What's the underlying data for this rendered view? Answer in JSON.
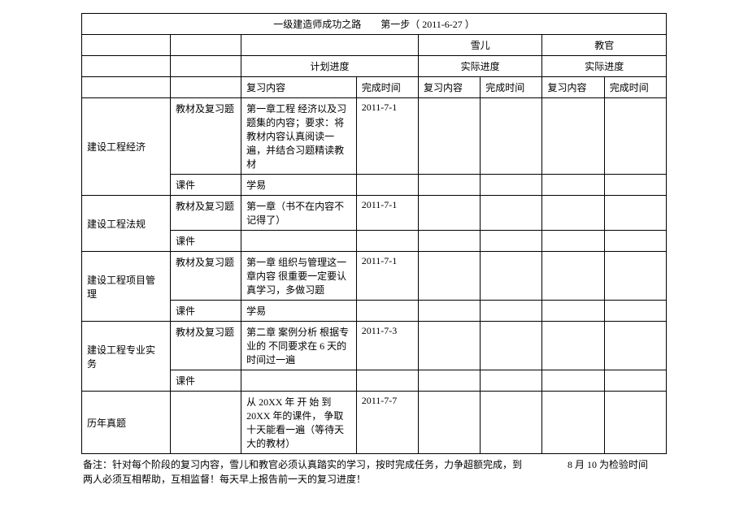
{
  "title": "一级建造师成功之路　　第一步（ 2011-6-27 ）",
  "header": {
    "person1": "雪儿",
    "person2": "教官",
    "plan_progress": "计划进度",
    "actual_progress": "实际进度",
    "review_content": "复习内容",
    "complete_time": "完成时间"
  },
  "sections": [
    {
      "subject": "建设工程经济",
      "items": [
        {
          "type": "教材及复习题",
          "content": "第一章工程 经济以及习题集的内容；要求：将教材内容认真阅读一遍，并结合习题精读教材",
          "time": "2011-7-1"
        },
        {
          "type": "课件",
          "content": "学易",
          "time": ""
        }
      ]
    },
    {
      "subject": "建设工程法规",
      "items": [
        {
          "type": "教材及复习题",
          "content": "第一章（书不在内容不记得了）",
          "time": "2011-7-1"
        },
        {
          "type": "课件",
          "content": "",
          "time": ""
        }
      ]
    },
    {
      "subject": "建设工程项目管理",
      "items": [
        {
          "type": "教材及复习题",
          "content": "第一章 组织与管理这一章内容 很重要一定要认真学习，多做习题",
          "time": "2011-7-1"
        },
        {
          "type": "课件",
          "content": "学易",
          "time": ""
        }
      ]
    },
    {
      "subject": "建设工程专业实务",
      "items": [
        {
          "type": "教材及复习题",
          "content": "第二章 案例分析 根据专业的 不同要求在 6 天的时间过一遍",
          "time": "2011-7-3"
        },
        {
          "type": "课件",
          "content": "",
          "time": ""
        }
      ]
    },
    {
      "subject": "历年真题",
      "items": [
        {
          "type": "",
          "content": "从 20XX 年 开 始 到20XX 年的课件， 争取十天能看一遍（等待天大的教材）",
          "time": "2011-7-7"
        }
      ]
    }
  ],
  "notes": {
    "line1_left": "备注：针对每个阶段的复习内容，雪儿和教官必须认真踏实的学习，按时完成任务，力争超额完成，到",
    "line1_right": "8 月 10 为检验时间",
    "line2": "两人必须互相帮助，互相监督！每天早上报告前一天的复习进度！"
  }
}
